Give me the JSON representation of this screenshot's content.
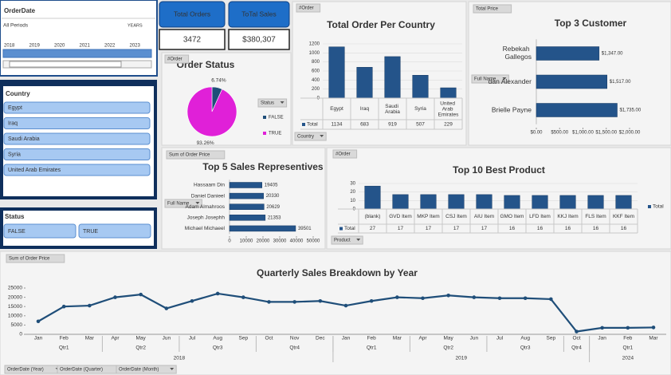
{
  "slicers": {
    "order_date": {
      "title": "OrderDate",
      "period": "All Periods",
      "level": "YEARS",
      "years": [
        "2018",
        "2019",
        "2020",
        "2021",
        "2022",
        "2023"
      ]
    },
    "country": {
      "title": "Country",
      "items": [
        "Egypt",
        "Iraq",
        "Saudi Arabia",
        "Syria",
        "United Arab Emirates"
      ]
    },
    "status": {
      "title": "Status",
      "items": [
        "FALSE",
        "TRUE"
      ]
    }
  },
  "kpis": [
    {
      "label": "Total Orders",
      "value": 3472
    },
    {
      "label": "ToTal Sales",
      "value": 380307,
      "value_label": "$380,307"
    }
  ],
  "chart_data": [
    {
      "type": "bar",
      "title": "Total Order Per Country",
      "field_buttons": [
        "#Order",
        "Country"
      ],
      "categories": [
        "Egypt",
        "Iraq",
        "Saudi Arabia",
        "Syria",
        "United Arab Emirates"
      ],
      "series": [
        {
          "name": "Total",
          "color": "#24548a",
          "values": [
            1134,
            683,
            919,
            507,
            229
          ]
        }
      ],
      "ylim": [
        0,
        1200
      ],
      "yticks": [
        0,
        200,
        400,
        600,
        800,
        1000,
        1200
      ],
      "grid": true,
      "legend": "table"
    },
    {
      "type": "pie",
      "title": "Order  Status",
      "field_buttons": [
        "#Order",
        "Status"
      ],
      "categories": [
        "FALSE",
        "TRUE"
      ],
      "values": [
        6.74,
        93.26
      ],
      "value_labels": [
        "6.74%",
        "93.26%"
      ],
      "colors": [
        "#1f4e79",
        "#e020d8"
      ],
      "legend": "right"
    },
    {
      "type": "barh",
      "title": "Top 3 Customer",
      "field_buttons": [
        "Total Price",
        "Full Name"
      ],
      "categories": [
        "Rebekah Gallegos",
        "dan Alexander",
        "Brielle Payne"
      ],
      "values": [
        1347,
        1517,
        1735
      ],
      "value_labels": [
        "$1,347.00",
        "$1,517.00",
        "$1,735.00"
      ],
      "color": "#24548a",
      "xlim": [
        0,
        2000
      ],
      "xticks": [
        {
          "value": 0,
          "label": "$0.00"
        },
        {
          "value": 500,
          "label": "$500.00"
        },
        {
          "value": 1000,
          "label": "$1,000.00"
        },
        {
          "value": 1500,
          "label": "$1,500.00"
        },
        {
          "value": 2000,
          "label": "$2,000.00"
        }
      ]
    },
    {
      "type": "barh",
      "title": "Top 5 Sales Representives",
      "field_buttons": [
        "Sum of Order Price",
        "Full Name"
      ],
      "categories": [
        "Hassaam Din",
        "Daniel Danieel",
        "Adam Almahroos",
        "Joseph Josephh",
        "Michael Michaeel"
      ],
      "values": [
        19405,
        20330,
        20629,
        21353,
        39501
      ],
      "color": "#24548a",
      "xlim": [
        0,
        50000
      ],
      "xticks": [
        0,
        10000,
        20000,
        30000,
        40000,
        50000
      ]
    },
    {
      "type": "bar",
      "title": "Top 10 Best Product",
      "field_buttons": [
        "#Order",
        "Product"
      ],
      "categories": [
        "(blank)",
        "GVD Item",
        "MKP Item",
        "CSJ Item",
        "AIU Item",
        "GMO Item",
        "LFD Item",
        "KKJ Item",
        "FLS Item",
        "KKF Item"
      ],
      "series": [
        {
          "name": "Total",
          "color": "#24548a",
          "values": [
            27,
            17,
            17,
            17,
            17,
            16,
            16,
            16,
            16,
            16
          ]
        }
      ],
      "ylim": [
        0,
        30
      ],
      "yticks": [
        0,
        10,
        20,
        30
      ],
      "grid": true,
      "legend": "right"
    },
    {
      "type": "line",
      "title": "Quarterly Sales Breakdown by Year",
      "field_buttons": [
        "Sum of Order Price",
        "OrderDate (Year)",
        "OrderDate (Quarter)",
        "OrderDate (Month)"
      ],
      "categories": [
        "Jan",
        "Feb",
        "Mar",
        "Apr",
        "May",
        "Jun",
        "Jul",
        "Aug",
        "Sep",
        "Oct",
        "Nov",
        "Dec",
        "Jan",
        "Feb",
        "Mar",
        "Apr",
        "May",
        "Jun",
        "Jul",
        "Aug",
        "Sep",
        "Oct",
        "Jan",
        "Feb",
        "Mar"
      ],
      "quarters": [
        "Qtr1",
        "Qtr1",
        "Qtr1",
        "Qtr2",
        "Qtr2",
        "Qtr2",
        "Qtr3",
        "Qtr3",
        "Qtr3",
        "Qtr4",
        "Qtr4",
        "Qtr4",
        "Qtr1",
        "Qtr1",
        "Qtr1",
        "Qtr2",
        "Qtr2",
        "Qtr2",
        "Qtr3",
        "Qtr3",
        "Qtr3",
        "Qtr4",
        "Qtr1",
        "Qtr1",
        "Qtr1"
      ],
      "years": [
        "2018",
        "2018",
        "2018",
        "2018",
        "2018",
        "2018",
        "2018",
        "2018",
        "2018",
        "2018",
        "2018",
        "2018",
        "2019",
        "2019",
        "2019",
        "2019",
        "2019",
        "2019",
        "2019",
        "2019",
        "2019",
        "2019",
        "2024",
        "2024",
        "2024"
      ],
      "series": [
        {
          "name": "Total",
          "color": "#1f4e79",
          "values": [
            7000,
            15000,
            15500,
            20000,
            21500,
            14000,
            18000,
            22000,
            20000,
            17500,
            17500,
            18000,
            15500,
            18000,
            20000,
            19500,
            21000,
            20000,
            19500,
            19500,
            19000,
            1500,
            3500,
            3500,
            3700
          ]
        }
      ],
      "ylim": [
        0,
        25000
      ],
      "yticks": [
        0,
        5000,
        10000,
        15000,
        20000,
        25000
      ],
      "grid": false
    }
  ]
}
